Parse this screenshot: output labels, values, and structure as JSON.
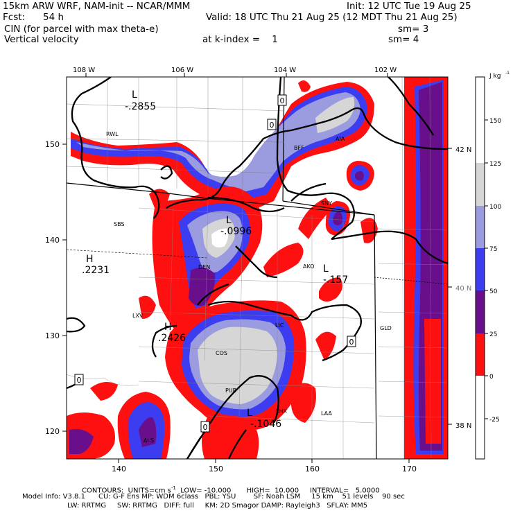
{
  "header": {
    "model": "15km ARW WRF, NAM-init -- NCAR/MMM",
    "init": "Init: 12 UTC Tue 19 Aug 25",
    "fcst_label": "Fcst:",
    "fcst_value": "54 h",
    "valid": "Valid: 18 UTC Thu 21 Aug 25 (12 MDT Thu 21 Aug 25)",
    "field1": "CIN (for parcel with max theta-e)",
    "sm1": "sm= 3",
    "field2": "Vertical velocity",
    "kindex": "at k-index =    1",
    "sm2": "sm= 4"
  },
  "axes": {
    "top_lon": [
      "108 W",
      "106 W",
      "104 W",
      "102 W"
    ],
    "right_lat": [
      "42 N",
      "40 N",
      "38 N"
    ],
    "left_y": [
      "150",
      "140",
      "130",
      "120"
    ],
    "bottom_x": [
      "140",
      "150",
      "160",
      "170"
    ]
  },
  "colorbar": {
    "unit": "J kg",
    "unit_sup": "-1",
    "ticks": [
      "150",
      "125",
      "100",
      "75",
      "50",
      "25",
      "0",
      "-25"
    ],
    "colors": {
      "gt125": "#ffffff",
      "100_125": "#d6d6d6",
      "75_100": "#9b9bdf",
      "50_75": "#3c3cf0",
      "25_50": "#6a0f8c",
      "0_25": "#ff1010",
      "lt0": "#ffffff"
    }
  },
  "map_labels": {
    "stations": [
      "RWL",
      "BFF",
      "AIA",
      "SNY",
      "SBS",
      "AKO",
      "LXV",
      "LIC",
      "GLD",
      "COS",
      "PUB",
      "LHX",
      "LAA",
      "ALS",
      "DEN"
    ],
    "centers": [
      {
        "type": "L",
        "value": "-.2855"
      },
      {
        "type": "L",
        "value": "-.0996"
      },
      {
        "type": "H",
        "value": ".2231"
      },
      {
        "type": "L",
        "value": "-.157"
      },
      {
        "type": "H",
        "value": ".2426"
      },
      {
        "type": "L",
        "value": "-.1046"
      }
    ],
    "zero_boxes": [
      "0",
      "0",
      "0",
      "0",
      "0"
    ]
  },
  "footer": {
    "contours": "CONTOURS:  UNITS=cm s",
    "contours_sup": "-1",
    "contours_rest": "  LOW= -10.000       HIGH=  10.000     INTERVAL=   5.0000",
    "model_info": "Model Info: V3.8.1      CU: G-F Ens MP: WDM 6class   PBL: YSU        SF: Noah LSM     15 km    51 levels    90 sec",
    "model_info2": "LW: RRTMG     SW: RRTMG   DIFF: full     KM: 2D Smagor DAMP: Rayleigh3   SFLAY: MM5"
  }
}
